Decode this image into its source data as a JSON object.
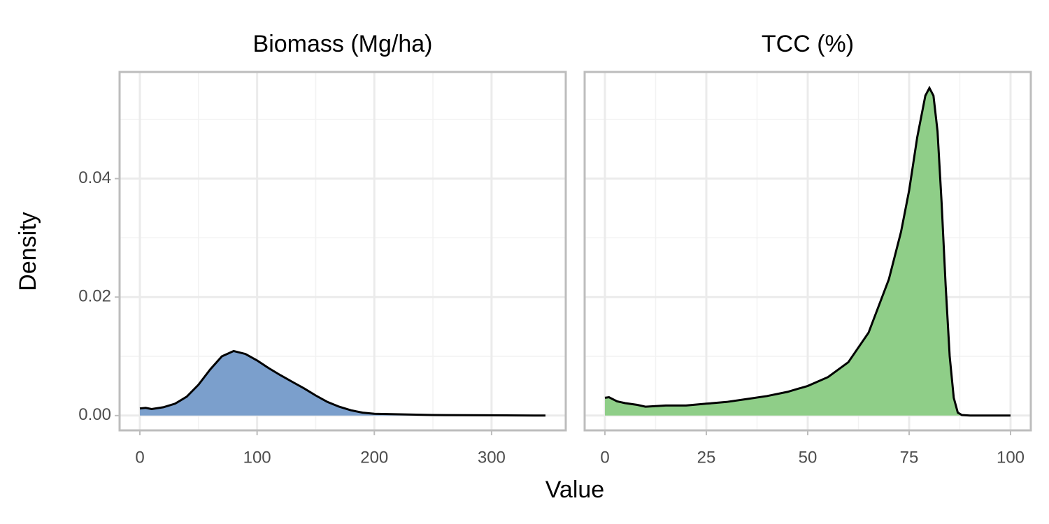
{
  "xlabel": "Value",
  "ylabel": "Density",
  "ylim": [
    -0.0025,
    0.058
  ],
  "yticks": [
    {
      "value": 0,
      "label": "0.00"
    },
    0.02,
    0.04
  ],
  "grid": true,
  "chart_data": [
    {
      "type": "area",
      "title": "Biomass (Mg/ha)",
      "color": "#7b9fcc",
      "x": [
        0,
        5,
        10,
        20,
        30,
        40,
        50,
        60,
        70,
        80,
        90,
        100,
        110,
        120,
        130,
        140,
        150,
        160,
        170,
        180,
        190,
        200,
        225,
        250,
        300,
        346
      ],
      "values": [
        0.0012,
        0.0013,
        0.0011,
        0.0014,
        0.002,
        0.0032,
        0.0052,
        0.0078,
        0.01,
        0.0109,
        0.0104,
        0.0093,
        0.008,
        0.0068,
        0.0057,
        0.0046,
        0.0034,
        0.0023,
        0.0015,
        0.0009,
        0.0005,
        0.0003,
        0.0002,
        0.0001,
        5e-05,
        0
      ],
      "xlim": [
        -17.3,
        363.3
      ],
      "xticks": [
        0,
        100,
        200,
        300
      ]
    },
    {
      "type": "area",
      "title": "TCC (%)",
      "color": "#8fce88",
      "x": [
        0,
        1,
        3,
        5,
        8,
        10,
        15,
        20,
        25,
        30,
        35,
        40,
        45,
        50,
        55,
        60,
        65,
        70,
        73,
        75,
        77,
        79,
        80,
        81,
        82,
        83,
        84,
        85,
        86,
        87,
        88,
        90,
        100
      ],
      "values": [
        0.003,
        0.0031,
        0.0024,
        0.0021,
        0.0018,
        0.0015,
        0.0017,
        0.0017,
        0.002,
        0.0023,
        0.0028,
        0.0033,
        0.004,
        0.005,
        0.0065,
        0.009,
        0.014,
        0.023,
        0.031,
        0.038,
        0.047,
        0.054,
        0.0553,
        0.054,
        0.048,
        0.036,
        0.022,
        0.01,
        0.003,
        0.0005,
        0.0001,
        0,
        0
      ],
      "xlim": [
        -5,
        105
      ],
      "xticks": [
        0,
        25,
        50,
        75,
        100
      ]
    }
  ]
}
